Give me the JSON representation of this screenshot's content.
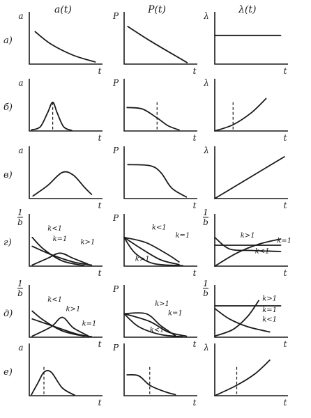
{
  "column_headers": [
    "a(t)",
    "P(t)",
    "λ(t)"
  ],
  "t_label": "t",
  "rows": [
    {
      "label": "а)",
      "panels": [
        {
          "y_label": "a",
          "labels": []
        },
        {
          "y_label": "P",
          "labels": []
        },
        {
          "y_label": "λ",
          "labels": []
        }
      ]
    },
    {
      "label": "б)",
      "panels": [
        {
          "y_label": "a",
          "labels": []
        },
        {
          "y_label": "P",
          "labels": []
        },
        {
          "y_label": "λ",
          "labels": []
        }
      ]
    },
    {
      "label": "в)",
      "panels": [
        {
          "y_label": "a",
          "labels": []
        },
        {
          "y_label": "P",
          "labels": []
        },
        {
          "y_label": "λ",
          "labels": []
        }
      ]
    },
    {
      "label": "г)",
      "panels": [
        {
          "y_label": "1/b",
          "labels": [
            "k<1",
            "k=1",
            "k>1"
          ]
        },
        {
          "y_label": "P",
          "labels": [
            "k<1",
            "k=1",
            "k>1"
          ]
        },
        {
          "y_label": "1/b",
          "labels": [
            "k>1",
            "k=1",
            "k<1"
          ]
        }
      ]
    },
    {
      "label": "д)",
      "panels": [
        {
          "y_label": "1/b",
          "labels": [
            "k<1",
            "k>1",
            "k=1"
          ]
        },
        {
          "y_label": "P",
          "labels": [
            "k>1",
            "k=1",
            "k<1"
          ]
        },
        {
          "y_label": "1/b",
          "labels": [
            "k>1",
            "k=1",
            "k<1"
          ]
        }
      ]
    },
    {
      "label": "е)",
      "panels": [
        {
          "y_label": "a",
          "labels": []
        },
        {
          "y_label": "P",
          "labels": []
        },
        {
          "y_label": "λ",
          "labels": []
        }
      ]
    }
  ]
}
